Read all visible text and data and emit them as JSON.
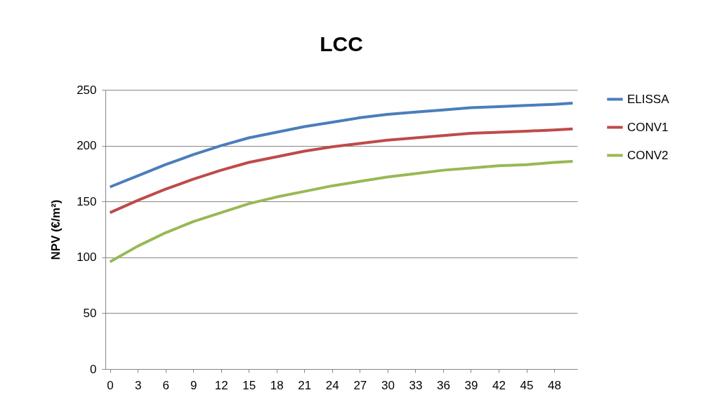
{
  "chart_data": {
    "type": "line",
    "title": "LCC",
    "ylabel": "NPV (€/m²)",
    "x": [
      0,
      3,
      6,
      9,
      12,
      15,
      18,
      21,
      24,
      27,
      30,
      33,
      36,
      39,
      42,
      45,
      48,
      50
    ],
    "xlim": [
      -0.5,
      50.5
    ],
    "xticks": [
      0,
      3,
      6,
      9,
      12,
      15,
      18,
      21,
      24,
      27,
      30,
      33,
      36,
      39,
      42,
      45,
      48
    ],
    "ylim": [
      0,
      250
    ],
    "yticks": [
      0,
      50,
      100,
      150,
      200,
      250
    ],
    "grid": "y",
    "legend": "right",
    "marker": "none",
    "line_style": "solid",
    "series": [
      {
        "name": "ELISSA",
        "color": "#4a7ebb",
        "values": [
          163,
          173,
          183,
          192,
          200,
          207,
          212,
          217,
          221,
          225,
          228,
          230,
          232,
          234,
          235,
          236,
          237,
          238
        ]
      },
      {
        "name": "CONV1",
        "color": "#be4b48",
        "values": [
          140,
          151,
          161,
          170,
          178,
          185,
          190,
          195,
          199,
          202,
          205,
          207,
          209,
          211,
          212,
          213,
          214,
          215
        ]
      },
      {
        "name": "CONV2",
        "color": "#98b954",
        "values": [
          96,
          110,
          122,
          132,
          140,
          148,
          154,
          159,
          164,
          168,
          172,
          175,
          178,
          180,
          182,
          183,
          185,
          186
        ]
      }
    ]
  }
}
